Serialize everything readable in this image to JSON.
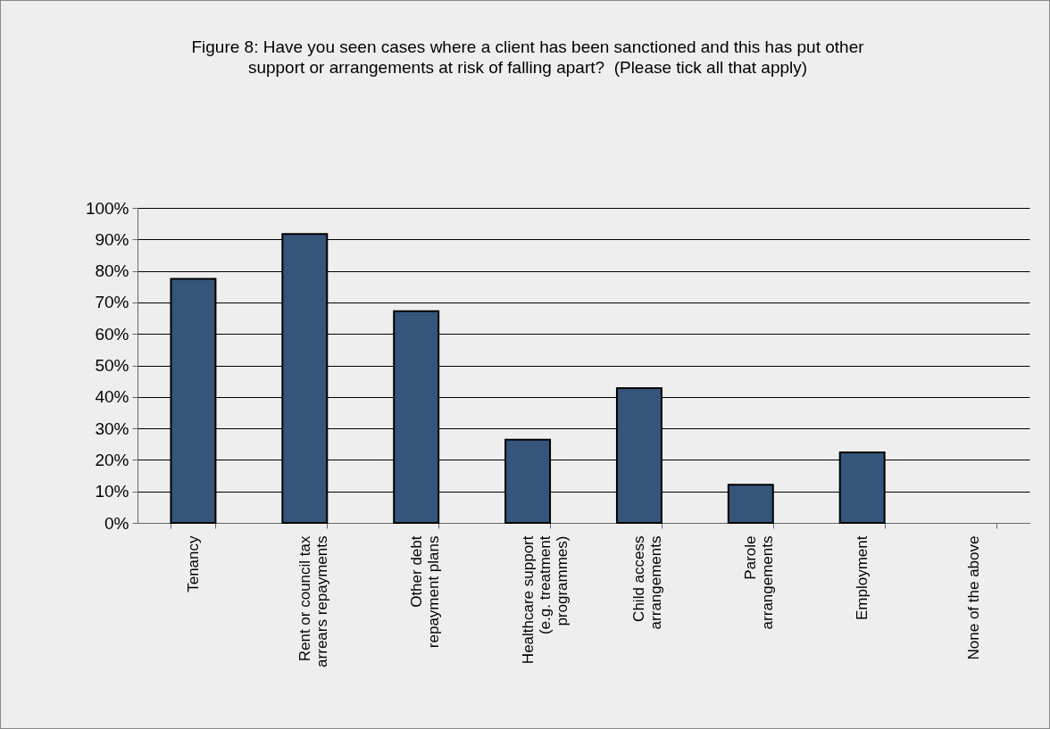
{
  "chart_data": {
    "type": "bar",
    "title": "Figure 8: Have you seen cases where a client has been sanctioned and this has put other support or arrangements at risk of falling apart?  (Please tick all that apply)",
    "categories": [
      "Tenancy",
      "Rent or council tax\narrears repayments",
      "Other debt\nrepayment plans",
      "Healthcare support\n(e.g. treatment\nprogrammes)",
      "Child access\narrangements",
      "Parole\narrangements",
      "Employment",
      "None of the above"
    ],
    "values": [
      77.5,
      91.7,
      67.2,
      26.4,
      42.8,
      12.1,
      22.4,
      0
    ],
    "color": "#35557b",
    "ylim": [
      0,
      100
    ],
    "yticks": [
      {
        "value": 0,
        "label": "0%"
      },
      {
        "value": 10,
        "label": "10%"
      },
      {
        "value": 20,
        "label": "20%"
      },
      {
        "value": 30,
        "label": "30%"
      },
      {
        "value": 40,
        "label": "40%"
      },
      {
        "value": 50,
        "label": "50%"
      },
      {
        "value": 60,
        "label": "60%"
      },
      {
        "value": 70,
        "label": "70%"
      },
      {
        "value": 80,
        "label": "80%"
      },
      {
        "value": 90,
        "label": "90%"
      },
      {
        "value": 100,
        "label": "100%"
      }
    ],
    "grid": "y"
  }
}
